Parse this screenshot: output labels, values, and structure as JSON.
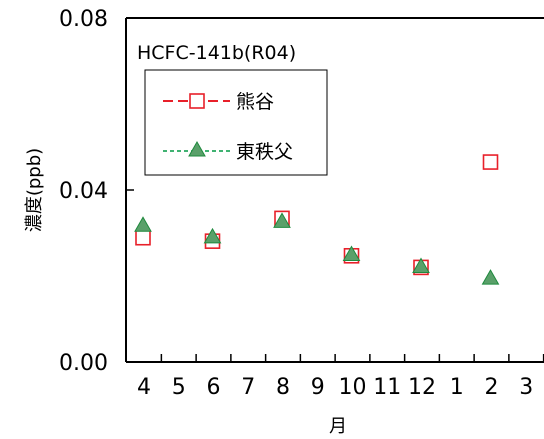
{
  "chart_data": {
    "type": "scatter",
    "title": "HCFC-141b(R04)",
    "xlabel": "月",
    "ylabel": "濃度(ppb)",
    "categories": [
      "4",
      "5",
      "6",
      "7",
      "8",
      "9",
      "10",
      "11",
      "12",
      "1",
      "2",
      "3"
    ],
    "ylim": [
      0,
      0.08
    ],
    "yticks": [
      "0.00",
      "0.04",
      "0.08"
    ],
    "ytick_values": [
      0,
      0.04,
      0.08
    ],
    "legend_position": "top-left",
    "series": [
      {
        "name": "熊谷",
        "marker": "square-open",
        "line": "dashed",
        "color": "#e8202a",
        "points": [
          {
            "month": "4",
            "value": 0.0289
          },
          {
            "month": "6",
            "value": 0.0281
          },
          {
            "month": "8",
            "value": 0.0334
          },
          {
            "month": "10",
            "value": 0.0247
          },
          {
            "month": "12",
            "value": 0.022
          },
          {
            "month": "2",
            "value": 0.0465
          }
        ]
      },
      {
        "name": "東秩父",
        "marker": "triangle-filled",
        "line": "dashed",
        "color": "#009944",
        "fill": "#5aa06a",
        "points": [
          {
            "month": "4",
            "value": 0.0318
          },
          {
            "month": "6",
            "value": 0.0291
          },
          {
            "month": "8",
            "value": 0.0327
          },
          {
            "month": "10",
            "value": 0.025
          },
          {
            "month": "12",
            "value": 0.0222
          },
          {
            "month": "2",
            "value": 0.0195
          }
        ]
      }
    ]
  }
}
